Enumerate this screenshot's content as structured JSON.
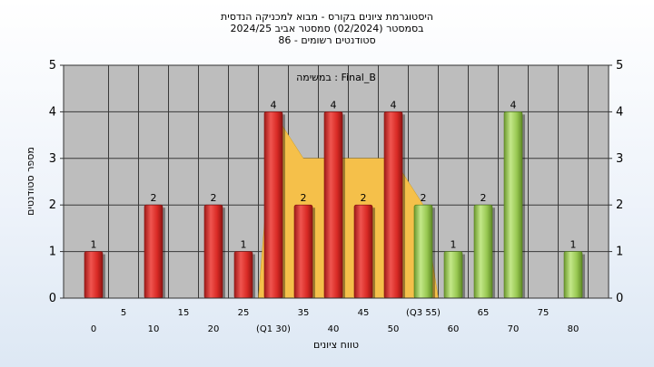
{
  "chart_data": {
    "type": "bar",
    "title_lines": [
      "היסטוגרמת ציונים בקורס - מבוא למכניקה הנדסית",
      "בסמסטר  (02/2024)  סמסטר אביב 2024/25",
      "סטודנטים רשומים - 86"
    ],
    "subtitle": "במשימה : Final_B",
    "xlabel": "טווח ציונים",
    "ylabel": "מספר סטודנטים",
    "ylim": [
      0,
      5
    ],
    "y_ticks": [
      "0",
      "1",
      "2",
      "3",
      "4",
      "5"
    ],
    "grid": true,
    "x_ticks": [
      {
        "x": 0,
        "label": "0"
      },
      {
        "x": 5,
        "label": "5"
      },
      {
        "x": 10,
        "label": "10"
      },
      {
        "x": 15,
        "label": "15"
      },
      {
        "x": 20,
        "label": "20"
      },
      {
        "x": 25,
        "label": "25"
      },
      {
        "x": 30,
        "label": "(Q1 30)"
      },
      {
        "x": 35,
        "label": "35"
      },
      {
        "x": 40,
        "label": "40"
      },
      {
        "x": 45,
        "label": "45"
      },
      {
        "x": 50,
        "label": "50"
      },
      {
        "x": 55,
        "label": "(Q3 55)"
      },
      {
        "x": 60,
        "label": "60"
      },
      {
        "x": 65,
        "label": "65"
      },
      {
        "x": 70,
        "label": "70"
      },
      {
        "x": 75,
        "label": "75"
      },
      {
        "x": 80,
        "label": "80"
      }
    ],
    "bars": [
      {
        "x": 0,
        "value": 1,
        "color": "red"
      },
      {
        "x": 10,
        "value": 2,
        "color": "red"
      },
      {
        "x": 20,
        "value": 2,
        "color": "red"
      },
      {
        "x": 25,
        "value": 1,
        "color": "red"
      },
      {
        "x": 30,
        "value": 4,
        "color": "red"
      },
      {
        "x": 35,
        "value": 2,
        "color": "red"
      },
      {
        "x": 40,
        "value": 4,
        "color": "red"
      },
      {
        "x": 45,
        "value": 2,
        "color": "red"
      },
      {
        "x": 50,
        "value": 4,
        "color": "red"
      },
      {
        "x": 55,
        "value": 2,
        "color": "green"
      },
      {
        "x": 60,
        "value": 1,
        "color": "green"
      },
      {
        "x": 65,
        "value": 2,
        "color": "green"
      },
      {
        "x": 70,
        "value": 4,
        "color": "green"
      },
      {
        "x": 80,
        "value": 1,
        "color": "green"
      }
    ],
    "area_series": {
      "points": [
        [
          27.5,
          0
        ],
        [
          30,
          4
        ],
        [
          35,
          3
        ],
        [
          40,
          3
        ],
        [
          45,
          3
        ],
        [
          50,
          3
        ],
        [
          55,
          2
        ],
        [
          57.5,
          0
        ]
      ]
    },
    "colors": {
      "red": "#e0302b",
      "green": "#9dcf55",
      "area": "#f5c04a",
      "plot_bg": "#bdbdbd",
      "grid": "#3a3a3a"
    }
  }
}
